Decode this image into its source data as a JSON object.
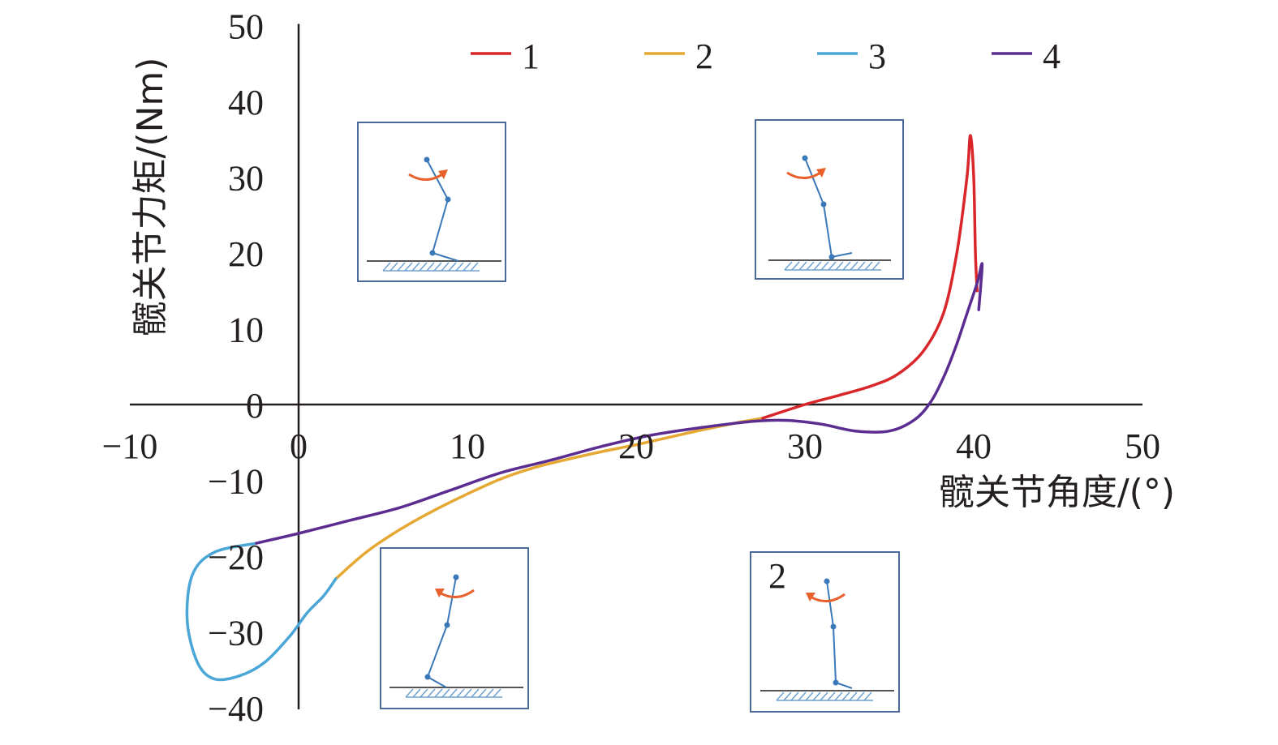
{
  "chart_data": {
    "type": "line",
    "xlabel": "髋关节角度/(°)",
    "ylabel": "髋关节力矩/(Nm)",
    "xlim": [
      -10,
      50
    ],
    "ylim": [
      -40,
      50
    ],
    "xticks": [
      -10,
      0,
      10,
      20,
      30,
      40,
      50
    ],
    "yticks": [
      50,
      40,
      30,
      20,
      10,
      0,
      -10,
      -20,
      -30,
      -40
    ],
    "x_tick_labels": [
      "−10",
      "0",
      "10",
      "20",
      "30",
      "40",
      "50"
    ],
    "y_tick_labels": [
      "50",
      "40",
      "30",
      "20",
      "10",
      "0",
      "−10",
      "−20",
      "−30",
      "−40"
    ],
    "legend": {
      "placement": "top"
    },
    "series": [
      {
        "name": "1",
        "color": "#d9262a",
        "x": [
          27.5,
          30.0,
          32.0,
          34.0,
          35.5,
          37.0,
          38.2,
          39.0,
          39.6,
          39.8,
          40.0,
          40.1,
          40.2
        ],
        "y": [
          -1.8,
          0.0,
          1.2,
          2.5,
          4.0,
          7.0,
          12.0,
          20.0,
          30.0,
          35.5,
          30.0,
          20.0,
          15.0
        ]
      },
      {
        "name": "2",
        "color": "#e5a832",
        "x": [
          2.2,
          4.0,
          6.0,
          8.0,
          10.0,
          12.0,
          14.0,
          16.0,
          18.0,
          20.0,
          22.0,
          24.0,
          26.0,
          27.5
        ],
        "y": [
          -23.0,
          -19.5,
          -16.5,
          -14.0,
          -11.8,
          -9.8,
          -8.3,
          -7.2,
          -6.2,
          -5.3,
          -4.3,
          -3.3,
          -2.4,
          -1.8
        ]
      },
      {
        "name": "3",
        "color": "#4ba6d8",
        "x": [
          -2.5,
          -5.0,
          -6.3,
          -6.6,
          -6.0,
          -5.0,
          -3.5,
          -2.0,
          -0.5,
          0.5,
          1.5,
          2.2
        ],
        "y": [
          -18.3,
          -19.5,
          -22.5,
          -28.5,
          -34.0,
          -36.2,
          -35.8,
          -34.0,
          -30.5,
          -27.5,
          -25.2,
          -23.0
        ]
      },
      {
        "name": "4",
        "color": "#5b2d91",
        "x": [
          -2.5,
          0.0,
          3.0,
          6.0,
          9.0,
          12.0,
          15.0,
          18.0,
          21.0,
          24.0,
          27.0,
          29.0,
          31.0,
          33.0,
          35.0,
          36.5,
          37.5,
          38.3,
          39.0,
          39.6,
          40.2,
          40.5,
          40.3
        ],
        "y": [
          -18.3,
          -17.0,
          -15.3,
          -13.6,
          -11.3,
          -9.0,
          -7.3,
          -5.5,
          -4.0,
          -3.0,
          -2.2,
          -2.1,
          -2.6,
          -3.5,
          -3.5,
          -2.0,
          0.5,
          4.0,
          8.0,
          12.0,
          16.0,
          18.5,
          12.5
        ]
      }
    ]
  },
  "insets": [
    {
      "label": ""
    },
    {
      "label": ""
    },
    {
      "label": ""
    },
    {
      "label": "2"
    }
  ],
  "colors": {
    "axis": "#231f20",
    "inset_border": "#4a6a9a",
    "leg": "#3a78b8",
    "arrow": "#e8602c",
    "ground": "#555555",
    "hatch": "#6ea0d0"
  }
}
